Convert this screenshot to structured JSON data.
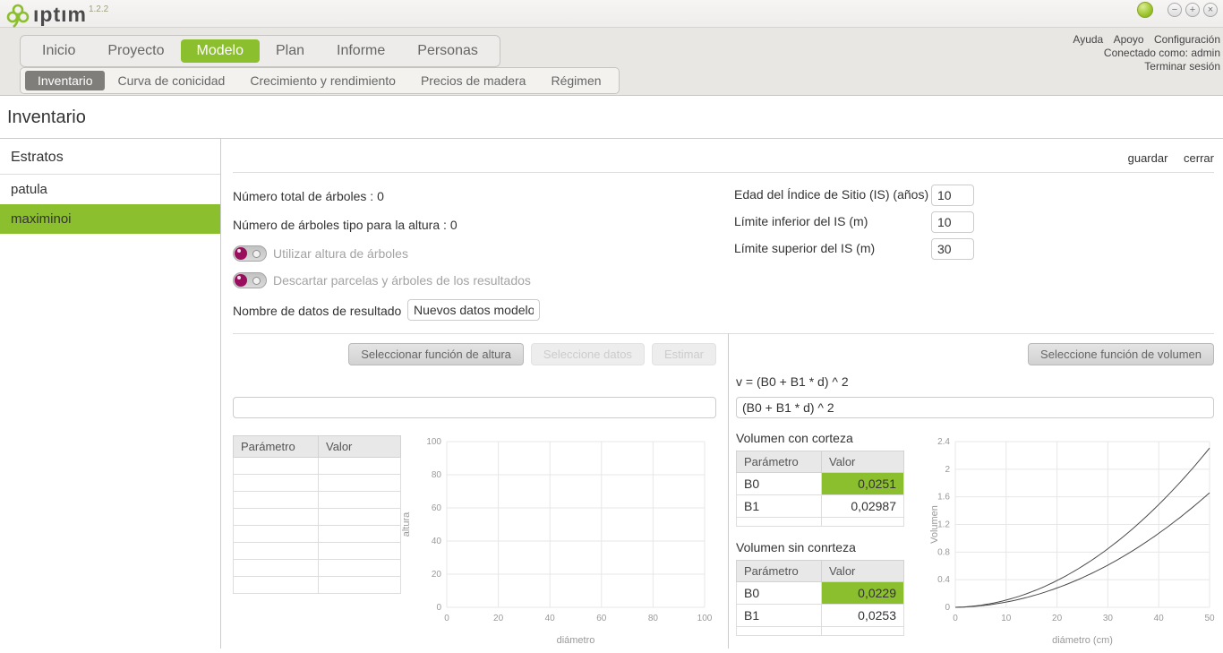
{
  "app": {
    "logo_text": "ıptım",
    "version": "1.2.2",
    "window_controls": {
      "minimize": "−",
      "maximize": "+",
      "close": "×"
    }
  },
  "main_nav": {
    "items": [
      {
        "label": "Inicio",
        "active": false
      },
      {
        "label": "Proyecto",
        "active": false
      },
      {
        "label": "Modelo",
        "active": true
      },
      {
        "label": "Plan",
        "active": false
      },
      {
        "label": "Informe",
        "active": false
      },
      {
        "label": "Personas",
        "active": false
      }
    ]
  },
  "user_menu": {
    "links": [
      "Ayuda",
      "Apoyo",
      "Configuración"
    ],
    "connected_label": "Conectado como:",
    "username": "admin",
    "logout": "Terminar sesión"
  },
  "sub_nav": {
    "items": [
      {
        "label": "Inventario",
        "active": true
      },
      {
        "label": "Curva de conicidad",
        "active": false
      },
      {
        "label": "Crecimiento y rendimiento",
        "active": false
      },
      {
        "label": "Precios de madera",
        "active": false
      },
      {
        "label": "Régimen",
        "active": false
      }
    ]
  },
  "page_title": "Inventario",
  "sidebar": {
    "title": "Estratos",
    "items": [
      {
        "label": "patula",
        "selected": false
      },
      {
        "label": "maximinoi",
        "selected": true
      }
    ]
  },
  "toolbar": {
    "save": "guardar",
    "close": "cerrar"
  },
  "summary": {
    "total_trees_label": "Número total de árboles :",
    "total_trees_value": "0",
    "height_trees_label": "Número de árboles tipo para la altura :",
    "height_trees_value": "0"
  },
  "toggles": [
    {
      "label": "Utilizar altura de árboles",
      "state": "off"
    },
    {
      "label": "Descartar parcelas y árboles de los resultados",
      "state": "off"
    }
  ],
  "result_name": {
    "label": "Nombre de datos de resultado",
    "value": "Nuevos datos modelo"
  },
  "site_index_fields": [
    {
      "label": "Edad del Índice de Sitio (IS) (años)",
      "value": "10"
    },
    {
      "label": "Límite inferior del IS (m)",
      "value": "10"
    },
    {
      "label": "Límite superior del IS (m)",
      "value": "30"
    }
  ],
  "height_section": {
    "buttons": [
      {
        "label": "Seleccionar función de altura",
        "enabled": true
      },
      {
        "label": "Seleccione datos",
        "enabled": false
      },
      {
        "label": "Estimar",
        "enabled": false
      }
    ],
    "formula_input": "",
    "table": {
      "headers": [
        "Parámetro",
        "Valor"
      ],
      "empty_rows": 8
    }
  },
  "volume_section": {
    "button_label": "Seleccione función de volumen",
    "formula_label": "v = (B0 + B1 * d) ^ 2",
    "formula_input": "(B0 + B1 * d) ^ 2",
    "with_bark": {
      "title": "Volumen con corteza",
      "headers": [
        "Parámetro",
        "Valor"
      ],
      "rows": [
        {
          "param": "B0",
          "value": "0,0251",
          "highlight": true
        },
        {
          "param": "B1",
          "value": "0,02987",
          "highlight": false
        },
        {
          "param": "",
          "value": "",
          "highlight": false
        }
      ]
    },
    "without_bark": {
      "title": "Volumen sin conrteza",
      "headers": [
        "Parámetro",
        "Valor"
      ],
      "rows": [
        {
          "param": "B0",
          "value": "0,0229",
          "highlight": true
        },
        {
          "param": "B1",
          "value": "0,0253",
          "highlight": false
        },
        {
          "param": "",
          "value": "",
          "highlight": false
        }
      ]
    }
  },
  "colors": {
    "accent_green": "#8cbf2e",
    "toggle_knob_magenta": "#990f5e",
    "selected_subnav_gray": "#807e7b"
  },
  "chart_data": [
    {
      "type": "line",
      "title": "",
      "xlabel": "diámetro",
      "ylabel": "altura",
      "xlim": [
        0,
        100
      ],
      "ylim": [
        0,
        100
      ],
      "xticks": [
        0,
        20,
        40,
        60,
        80,
        100
      ],
      "yticks": [
        0,
        20,
        40,
        60,
        80,
        100
      ],
      "grid": true,
      "legend": "none",
      "series": []
    },
    {
      "type": "line",
      "title": "",
      "xlabel": "diámetro (cm)",
      "ylabel": "Volumen",
      "xlim": [
        0,
        50
      ],
      "ylim": [
        0,
        2.4
      ],
      "xticks": [
        0,
        10,
        20,
        30,
        40,
        50
      ],
      "yticks": [
        0,
        0.4,
        0.8,
        1.2,
        1.6,
        2,
        2.4
      ],
      "grid": true,
      "legend": "none",
      "series": [
        {
          "name": "Volumen con corteza",
          "model": "v = (B0 + B1 * d) ^ 2",
          "B0": 0.0251,
          "B1": 0.02987,
          "y_at_x50": 2.31
        },
        {
          "name": "Volumen sin corteza",
          "model": "v = (B0 + B1 * d) ^ 2",
          "B0": 0.0229,
          "B1": 0.0253,
          "y_at_x50": 1.66
        }
      ]
    }
  ]
}
